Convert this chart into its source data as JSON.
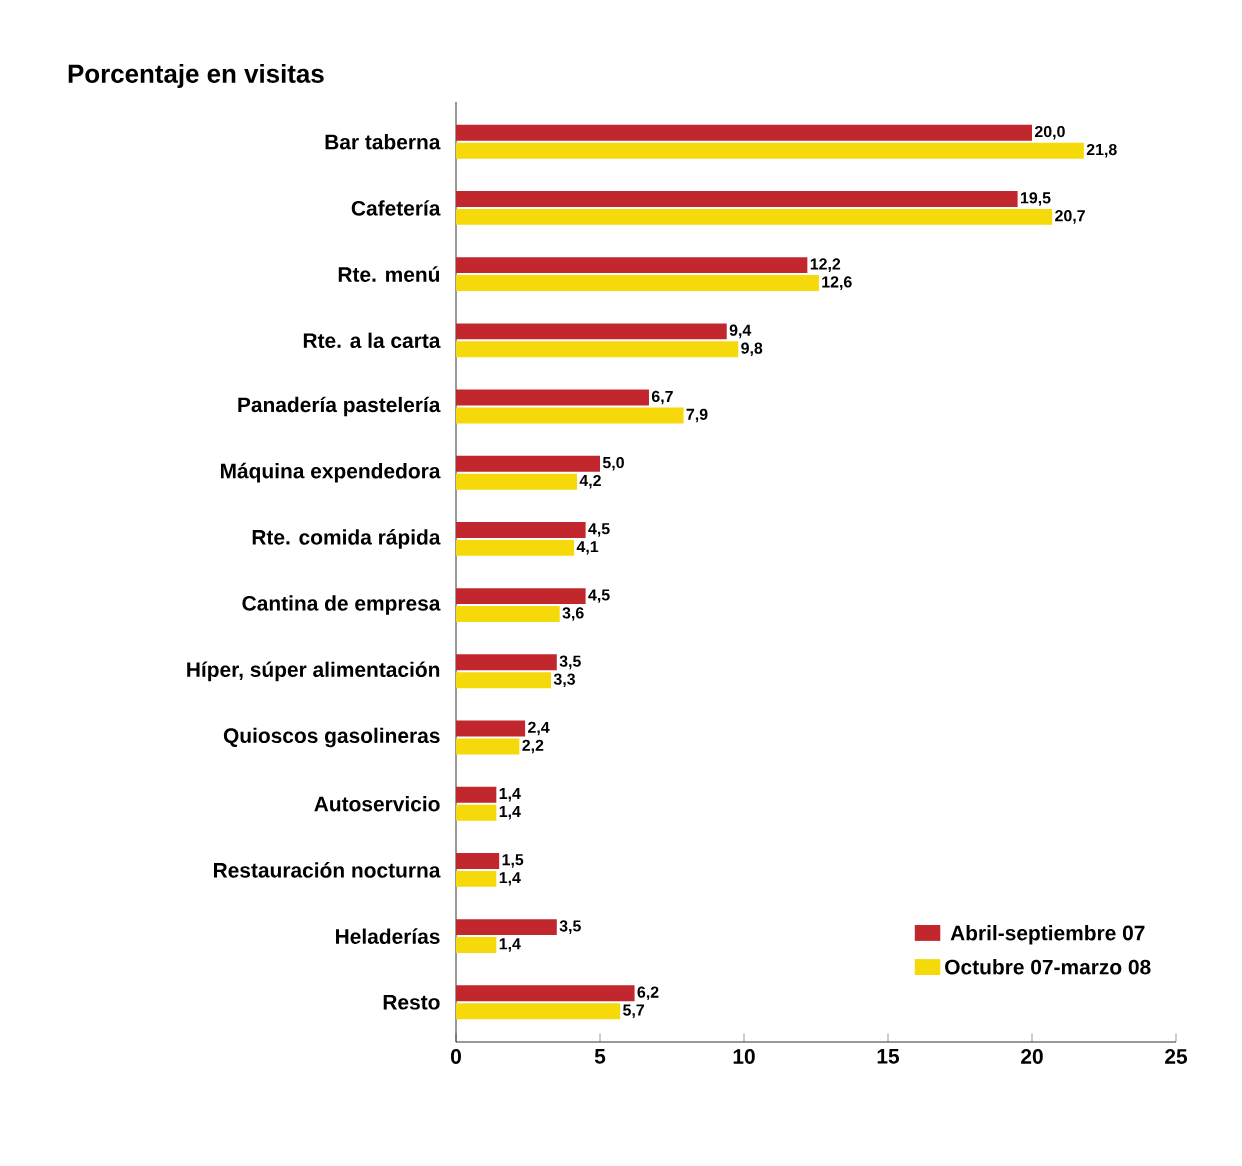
{
  "chart_data": {
    "type": "bar",
    "orientation": "horizontal",
    "title": "Porcentaje en visitas",
    "categories": [
      "Bar taberna",
      "Cafetería",
      "Rte. menú",
      "Rte. a la carta",
      "Panadería pastelería",
      "Máquina expendedora",
      "Rte. comida rápida",
      "Cantina de empresa",
      "Híper, súper alimentación",
      "Quioscos gasolineras",
      "Autoservicio",
      "Restauración nocturna",
      "Heladerías",
      "Resto"
    ],
    "series": [
      {
        "name": "Abril-septiembre 07",
        "color": "#c1272d",
        "values": [
          20.0,
          19.5,
          12.2,
          9.4,
          6.7,
          5.0,
          4.5,
          4.5,
          3.5,
          2.4,
          1.4,
          1.5,
          3.5,
          6.2
        ],
        "value_labels": [
          "20,0",
          "19,5",
          "12,2",
          "9,4",
          "6,7",
          "5,0",
          "4,5",
          "4,5",
          "3,5",
          "2,4",
          "1,4",
          "1,5",
          "3,5",
          "6,2"
        ]
      },
      {
        "name": "Octubre 07-marzo 08",
        "color": "#f5d90a",
        "values": [
          21.8,
          20.7,
          12.6,
          9.8,
          7.9,
          4.2,
          4.1,
          3.6,
          3.3,
          2.2,
          1.4,
          1.4,
          1.4,
          5.7
        ],
        "value_labels": [
          "21,8",
          "20,7",
          "12,6",
          "9,8",
          "7,9",
          "4,2",
          "4,1",
          "3,6",
          "3,3",
          "2,2",
          "1,4",
          "1,4",
          "1,4",
          "5,7"
        ]
      }
    ],
    "xlim": [
      0,
      25
    ],
    "xticks": [
      0,
      5,
      10,
      15,
      20,
      25
    ],
    "grid": false,
    "legend": "bottom right"
  }
}
